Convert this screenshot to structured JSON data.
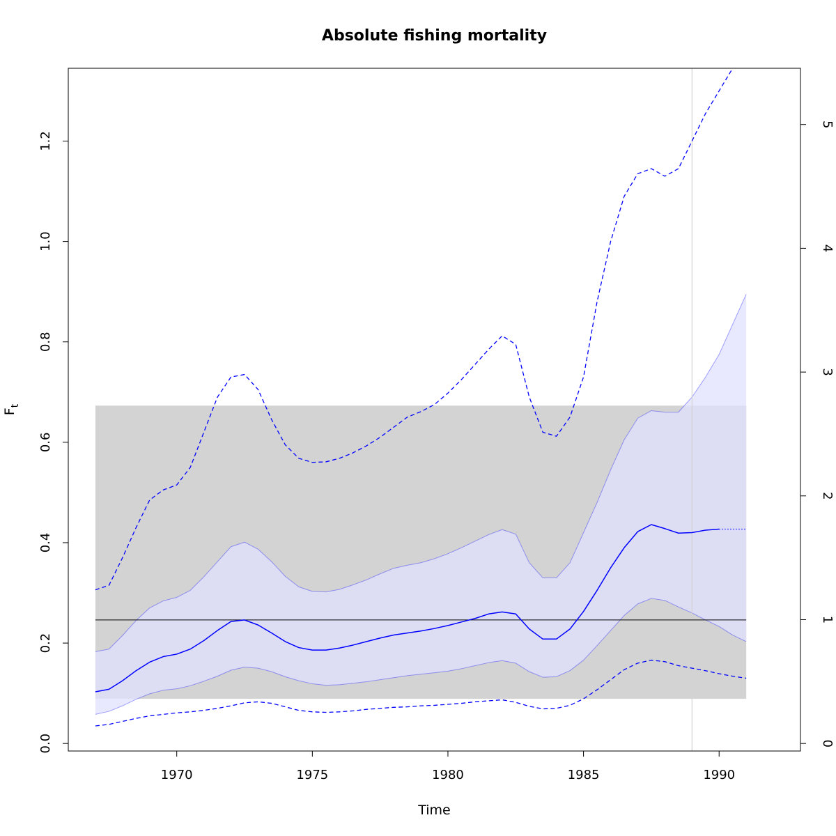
{
  "chart_data": {
    "type": "line",
    "title": "Absolute fishing mortality",
    "xlabel": "Time",
    "ylabel": "F",
    "ylabel_subscript": "t",
    "xlim": [
      1966.0,
      1993.0
    ],
    "ylim": [
      -0.015,
      1.345
    ],
    "right_axis": {
      "scale_factor": 0.2466,
      "ticks": [
        0,
        1,
        2,
        3,
        4,
        5
      ],
      "tick_labels": [
        "0",
        "1",
        "2",
        "3",
        "4",
        "5"
      ]
    },
    "x_ticks": [
      1970,
      1975,
      1980,
      1985,
      1990
    ],
    "x_tick_labels": [
      "1970",
      "1975",
      "1980",
      "1985",
      "1990"
    ],
    "y_ticks": [
      0.0,
      0.2,
      0.4,
      0.6,
      0.8,
      1.0,
      1.2
    ],
    "y_tick_labels": [
      "0.0",
      "0.2",
      "0.4",
      "0.6",
      "0.8",
      "1.0",
      "1.2"
    ],
    "colors": {
      "estimate": "#0000ff",
      "ci_fill": "#e0e0ff",
      "reference_box": "#d3d3d3",
      "reference_line": "#000000",
      "vertical_marker": "#d3d3d3"
    },
    "reference_box": {
      "x": [
        1967.0,
        1991.0
      ],
      "y": [
        0.089,
        0.673
      ]
    },
    "reference_line": {
      "x": [
        1967.0,
        1991.0
      ],
      "y": 0.246
    },
    "vertical_marker": {
      "x": 1989.0
    },
    "series": [
      {
        "role": "estimate",
        "style": "solid",
        "x": [
          1967.0,
          1967.5,
          1968.0,
          1968.5,
          1969.0,
          1969.5,
          1970.0,
          1970.5,
          1971.0,
          1971.5,
          1972.0,
          1972.5,
          1973.0,
          1973.5,
          1974.0,
          1974.5,
          1975.0,
          1975.5,
          1976.0,
          1976.5,
          1977.0,
          1977.5,
          1978.0,
          1978.5,
          1979.0,
          1979.5,
          1980.0,
          1980.5,
          1981.0,
          1981.5,
          1982.0,
          1982.5,
          1983.0,
          1983.5,
          1984.0,
          1984.5,
          1985.0,
          1985.5,
          1986.0,
          1986.5,
          1987.0,
          1987.5,
          1988.0,
          1988.5,
          1989.0,
          1989.5,
          1990.0
        ],
        "y": [
          0.103,
          0.108,
          0.125,
          0.145,
          0.162,
          0.173,
          0.178,
          0.188,
          0.205,
          0.225,
          0.243,
          0.246,
          0.236,
          0.22,
          0.203,
          0.191,
          0.186,
          0.186,
          0.19,
          0.196,
          0.203,
          0.21,
          0.216,
          0.22,
          0.224,
          0.229,
          0.235,
          0.242,
          0.249,
          0.258,
          0.262,
          0.258,
          0.228,
          0.208,
          0.208,
          0.228,
          0.263,
          0.305,
          0.35,
          0.39,
          0.422,
          0.436,
          0.428,
          0.419,
          0.42,
          0.425,
          0.427
        ]
      },
      {
        "role": "estimate_projection",
        "style": "dotted",
        "x": [
          1990.0,
          1991.0
        ],
        "y": [
          0.427,
          0.427
        ]
      },
      {
        "role": "ci_upper",
        "style": "solid",
        "x": [
          1967.0,
          1967.5,
          1968.0,
          1968.5,
          1969.0,
          1969.5,
          1970.0,
          1970.5,
          1971.0,
          1971.5,
          1972.0,
          1972.5,
          1973.0,
          1973.5,
          1974.0,
          1974.5,
          1975.0,
          1975.5,
          1976.0,
          1976.5,
          1977.0,
          1977.5,
          1978.0,
          1978.5,
          1979.0,
          1979.5,
          1980.0,
          1980.5,
          1981.0,
          1981.5,
          1982.0,
          1982.5,
          1983.0,
          1983.5,
          1984.0,
          1984.5,
          1985.0,
          1985.5,
          1986.0,
          1986.5,
          1987.0,
          1987.5,
          1988.0,
          1988.5,
          1989.0,
          1989.5,
          1990.0,
          1990.5,
          1991.0
        ],
        "y": [
          0.183,
          0.188,
          0.215,
          0.245,
          0.27,
          0.284,
          0.291,
          0.305,
          0.332,
          0.362,
          0.392,
          0.401,
          0.387,
          0.362,
          0.333,
          0.312,
          0.303,
          0.302,
          0.307,
          0.316,
          0.326,
          0.338,
          0.349,
          0.355,
          0.36,
          0.368,
          0.378,
          0.39,
          0.403,
          0.416,
          0.426,
          0.417,
          0.36,
          0.33,
          0.33,
          0.36,
          0.42,
          0.48,
          0.545,
          0.605,
          0.648,
          0.663,
          0.66,
          0.66,
          0.69,
          0.73,
          0.775,
          0.835,
          0.895
        ]
      },
      {
        "role": "ci_lower",
        "style": "solid",
        "x": [
          1967.0,
          1967.5,
          1968.0,
          1968.5,
          1969.0,
          1969.5,
          1970.0,
          1970.5,
          1971.0,
          1971.5,
          1972.0,
          1972.5,
          1973.0,
          1973.5,
          1974.0,
          1974.5,
          1975.0,
          1975.5,
          1976.0,
          1976.5,
          1977.0,
          1977.5,
          1978.0,
          1978.5,
          1979.0,
          1979.5,
          1980.0,
          1980.5,
          1981.0,
          1981.5,
          1982.0,
          1982.5,
          1983.0,
          1983.5,
          1984.0,
          1984.5,
          1985.0,
          1985.5,
          1986.0,
          1986.5,
          1987.0,
          1987.5,
          1988.0,
          1988.5,
          1989.0,
          1989.5,
          1990.0,
          1990.5,
          1991.0
        ],
        "y": [
          0.058,
          0.064,
          0.075,
          0.088,
          0.099,
          0.106,
          0.109,
          0.115,
          0.124,
          0.134,
          0.146,
          0.152,
          0.15,
          0.143,
          0.133,
          0.125,
          0.119,
          0.116,
          0.117,
          0.12,
          0.123,
          0.127,
          0.131,
          0.135,
          0.138,
          0.141,
          0.144,
          0.149,
          0.155,
          0.161,
          0.165,
          0.16,
          0.143,
          0.132,
          0.133,
          0.145,
          0.166,
          0.195,
          0.225,
          0.255,
          0.278,
          0.289,
          0.285,
          0.272,
          0.26,
          0.246,
          0.233,
          0.216,
          0.203
        ]
      },
      {
        "role": "upper_dashed",
        "style": "dashed",
        "x": [
          1967.0,
          1967.5,
          1968.0,
          1968.5,
          1969.0,
          1969.5,
          1970.0,
          1970.5,
          1971.0,
          1971.5,
          1972.0,
          1972.5,
          1973.0,
          1973.5,
          1974.0,
          1974.5,
          1975.0,
          1975.5,
          1976.0,
          1976.5,
          1977.0,
          1977.5,
          1978.0,
          1978.5,
          1979.0,
          1979.5,
          1980.0,
          1980.5,
          1981.0,
          1981.5,
          1982.0,
          1982.5,
          1983.0,
          1983.5,
          1984.0,
          1984.5,
          1985.0,
          1985.5,
          1986.0,
          1986.5,
          1987.0,
          1987.5,
          1988.0,
          1988.5,
          1989.0,
          1989.5,
          1990.0,
          1990.5
        ],
        "y": [
          0.306,
          0.315,
          0.37,
          0.43,
          0.485,
          0.505,
          0.515,
          0.55,
          0.62,
          0.69,
          0.73,
          0.735,
          0.705,
          0.645,
          0.595,
          0.568,
          0.56,
          0.561,
          0.568,
          0.579,
          0.593,
          0.61,
          0.63,
          0.65,
          0.661,
          0.675,
          0.698,
          0.725,
          0.755,
          0.785,
          0.812,
          0.795,
          0.69,
          0.62,
          0.612,
          0.65,
          0.73,
          0.88,
          1.0,
          1.09,
          1.135,
          1.145,
          1.13,
          1.145,
          1.2,
          1.255,
          1.3,
          1.345
        ]
      },
      {
        "role": "lower_dashed",
        "style": "dashed",
        "x": [
          1967.0,
          1967.5,
          1968.0,
          1968.5,
          1969.0,
          1969.5,
          1970.0,
          1970.5,
          1971.0,
          1971.5,
          1972.0,
          1972.5,
          1973.0,
          1973.5,
          1974.0,
          1974.5,
          1975.0,
          1975.5,
          1976.0,
          1976.5,
          1977.0,
          1977.5,
          1978.0,
          1978.5,
          1979.0,
          1979.5,
          1980.0,
          1980.5,
          1981.0,
          1981.5,
          1982.0,
          1982.5,
          1983.0,
          1983.5,
          1984.0,
          1984.5,
          1985.0,
          1985.5,
          1986.0,
          1986.5,
          1987.0,
          1987.5,
          1988.0,
          1988.5,
          1989.0,
          1989.5,
          1990.0,
          1990.5,
          1991.0
        ],
        "y": [
          0.035,
          0.038,
          0.044,
          0.05,
          0.055,
          0.058,
          0.061,
          0.063,
          0.066,
          0.07,
          0.075,
          0.081,
          0.083,
          0.08,
          0.073,
          0.066,
          0.063,
          0.062,
          0.063,
          0.065,
          0.068,
          0.07,
          0.072,
          0.073,
          0.075,
          0.076,
          0.078,
          0.08,
          0.083,
          0.085,
          0.087,
          0.082,
          0.074,
          0.069,
          0.07,
          0.076,
          0.089,
          0.107,
          0.127,
          0.147,
          0.16,
          0.166,
          0.163,
          0.155,
          0.15,
          0.145,
          0.139,
          0.134,
          0.13
        ]
      }
    ]
  }
}
